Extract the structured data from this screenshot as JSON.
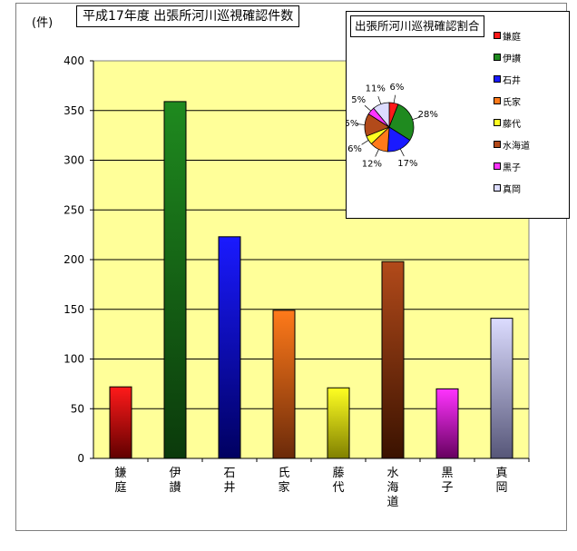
{
  "chart_data": [
    {
      "type": "bar",
      "title": "平成17年度 出張所河川巡視確認件数",
      "ylabel": "(件)",
      "xlabel": "",
      "categories": [
        "鎌庭",
        "伊讃",
        "石井",
        "氏家",
        "藤代",
        "水海道",
        "黒子",
        "真岡"
      ],
      "values": [
        72,
        359,
        223,
        149,
        71,
        198,
        70,
        141
      ],
      "ylim": [
        0,
        400
      ],
      "yticks": [
        "0",
        "50",
        "100",
        "150",
        "200",
        "250",
        "300",
        "350",
        "400"
      ],
      "grid": true,
      "plot_background": "#ffff99",
      "bar_colors": [
        [
          "#ff1a1a",
          "#600000"
        ],
        [
          "#1f8a1f",
          "#0b3a0b"
        ],
        [
          "#1a1aff",
          "#000060"
        ],
        [
          "#ff7a1a",
          "#6b2a0a"
        ],
        [
          "#ffff22",
          "#808000"
        ],
        [
          "#b24a1a",
          "#3a1200"
        ],
        [
          "#ff33ff",
          "#66005f"
        ],
        [
          "#dcdcff",
          "#565678"
        ]
      ]
    },
    {
      "type": "pie",
      "title": "出張所河川巡視確認割合",
      "labels": [
        "鎌庭",
        "伊讃",
        "石井",
        "氏家",
        "藤代",
        "水海道",
        "黒子",
        "真岡"
      ],
      "percent_labels": [
        "6%",
        "28%",
        "17%",
        "12%",
        "6%",
        "15%",
        "5%",
        "11%"
      ],
      "percentages": [
        6,
        28,
        17,
        12,
        6,
        15,
        5,
        11
      ],
      "colors": [
        "#ff1a1a",
        "#1f8a1f",
        "#1a1aff",
        "#ff7a1a",
        "#ffff22",
        "#b24a1a",
        "#ff33ff",
        "#dcdcff"
      ],
      "legend_position": "right"
    }
  ]
}
